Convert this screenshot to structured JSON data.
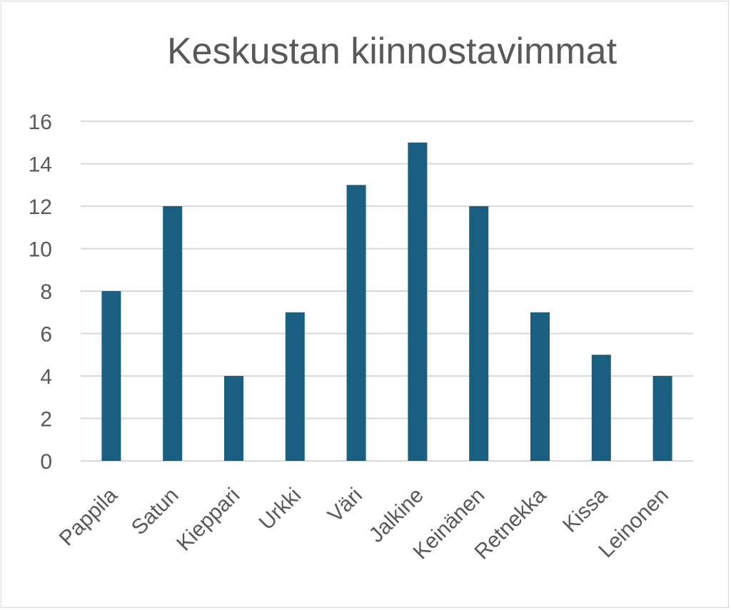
{
  "chart_data": {
    "type": "bar",
    "title": "Keskustan kiinnostavimmat",
    "categories": [
      "Pappila",
      "Satun",
      "Kieppari",
      "Urkki",
      "Väri",
      "Jalkine",
      "Keinänen",
      "Retnekka",
      "Kissa",
      "Leinonen"
    ],
    "values": [
      8,
      12,
      4,
      7,
      13,
      15,
      12,
      7,
      5,
      4
    ],
    "xlabel": "",
    "ylabel": "",
    "ylim": [
      0,
      16
    ],
    "yticks": [
      0,
      2,
      4,
      6,
      8,
      10,
      12,
      14,
      16
    ],
    "grid": true,
    "legend": "none",
    "bar_color": "#1a5f82",
    "grid_color": "#d9d9d9"
  }
}
